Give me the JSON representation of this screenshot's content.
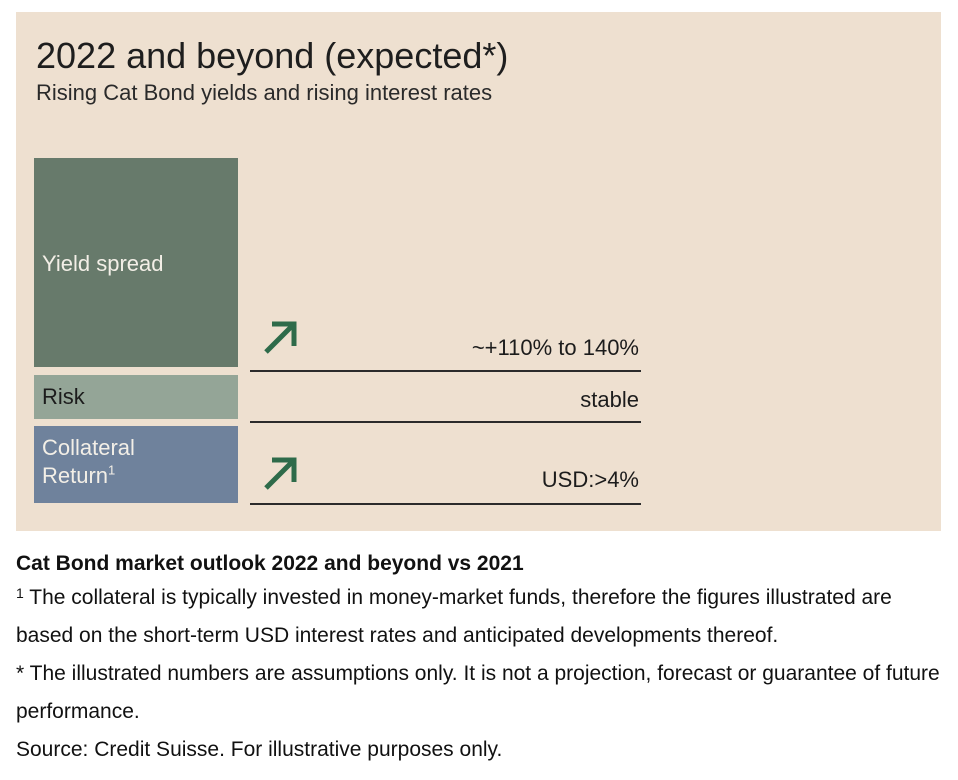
{
  "figure": {
    "title": "2022 and beyond (expected*)",
    "subtitle": "Rising Cat Bond yields and rising interest rates",
    "components": [
      {
        "label": "Yield spread",
        "trend": "up-arrow-icon",
        "value": "~+110% to 140%",
        "color": "#677a6b"
      },
      {
        "label": "Risk",
        "trend": "",
        "value": "stable",
        "color": "#94a597"
      },
      {
        "label_line1": "Collateral",
        "label_line2": "Return",
        "label_superscript": "1",
        "trend": "up-arrow-icon",
        "value": "USD:>4%",
        "color": "#6f829c"
      }
    ],
    "arrow_color": "#2e6b4a",
    "background_color": "#eee0d0"
  },
  "caption": {
    "title": "Cat Bond market outlook 2022 and beyond vs 2021",
    "footnote_marker": "1",
    "footnote_text": " The collateral is typically invested in money-market funds, therefore the figures illustrated are based on the short-term USD interest rates and anticipated developments thereof.",
    "disclaimer": "* The illustrated numbers are assumptions only. It is not a projection, forecast or guarantee of future performance.",
    "source": "Source: Credit Suisse. For illustrative purposes only."
  }
}
